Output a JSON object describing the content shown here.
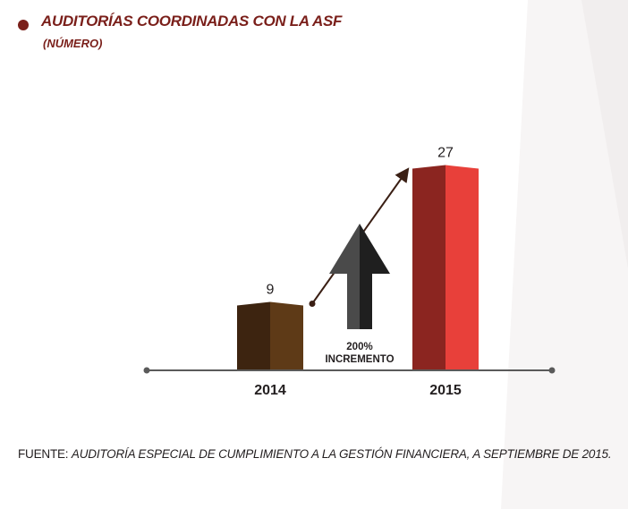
{
  "title": "AUDITORÍAS COORDINADAS CON LA ASF",
  "subtitle": "(NÚMERO)",
  "chart_data": {
    "type": "bar",
    "categories": [
      "2014",
      "2015"
    ],
    "values": [
      9,
      27
    ],
    "data_labels": [
      "9",
      "27"
    ],
    "bar_colors": [
      {
        "dark": "#3d2410",
        "light": "#5e3a17"
      },
      {
        "dark": "#8b2520",
        "light": "#e8403a"
      }
    ],
    "annotation": {
      "line1": "200%",
      "line2": "INCREMENTO",
      "arrow_color": "#3a3a3a"
    },
    "axis_color": "#5a5a5a",
    "grid": false
  },
  "source": {
    "label": "FUENTE:",
    "text": "AUDITORÍA ESPECIAL DE CUMPLIMIENTO A LA GESTIÓN FINANCIERA, A SEPTIEMBRE DE 2015."
  }
}
